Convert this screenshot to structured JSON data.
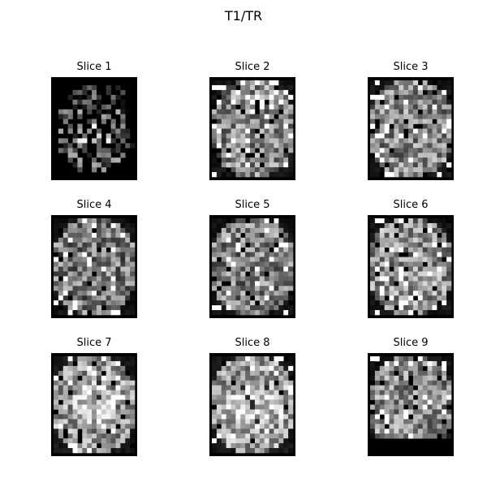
{
  "figure": {
    "title": "T1/TR",
    "colormap": "gray",
    "background": "#ffffff",
    "panels": [
      {
        "title": "Slice 1",
        "seed": 11,
        "fg": 0.35,
        "style": "sparse"
      },
      {
        "title": "Slice 2",
        "seed": 23,
        "fg": 0.55,
        "style": "mid"
      },
      {
        "title": "Slice 3",
        "seed": 37,
        "fg": 0.55,
        "style": "mid"
      },
      {
        "title": "Slice 4",
        "seed": 41,
        "fg": 0.45,
        "style": "mid"
      },
      {
        "title": "Slice 5",
        "seed": 53,
        "fg": 0.5,
        "style": "mid"
      },
      {
        "title": "Slice 6",
        "seed": 67,
        "fg": 0.6,
        "style": "mid"
      },
      {
        "title": "Slice 7",
        "seed": 71,
        "fg": 0.65,
        "style": "bright"
      },
      {
        "title": "Slice 8",
        "seed": 83,
        "fg": 0.7,
        "style": "bright"
      },
      {
        "title": "Slice 9",
        "seed": 97,
        "fg": 0.55,
        "style": "bottom-empty"
      }
    ]
  }
}
